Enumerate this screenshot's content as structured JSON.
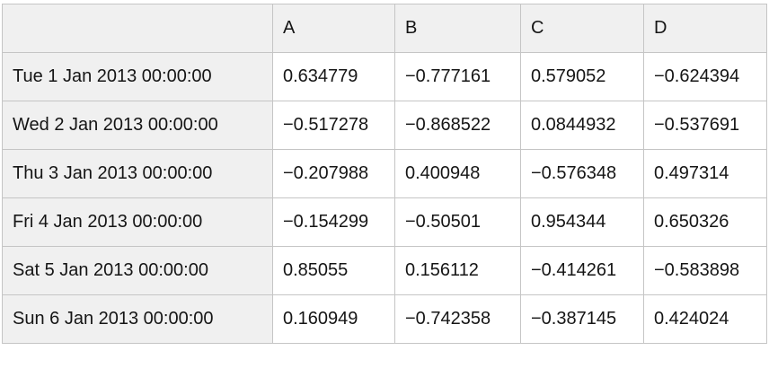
{
  "table": {
    "corner_label": "",
    "columns": [
      "A",
      "B",
      "C",
      "D"
    ],
    "rows": [
      {
        "label": "Tue 1 Jan 2013 00:00:00",
        "values": [
          "0.634779",
          "−0.777161",
          "0.579052",
          "−0.624394"
        ]
      },
      {
        "label": "Wed 2 Jan 2013 00:00:00",
        "values": [
          "−0.517278",
          "−0.868522",
          "0.0844932",
          "−0.537691"
        ]
      },
      {
        "label": "Thu 3 Jan 2013 00:00:00",
        "values": [
          "−0.207988",
          "0.400948",
          "−0.576348",
          "0.497314"
        ]
      },
      {
        "label": "Fri 4 Jan 2013 00:00:00",
        "values": [
          "−0.154299",
          "−0.50501",
          "0.954344",
          "0.650326"
        ]
      },
      {
        "label": "Sat 5 Jan 2013 00:00:00",
        "values": [
          "0.85055",
          "0.156112",
          "−0.414261",
          "−0.583898"
        ]
      },
      {
        "label": "Sun 6 Jan 2013 00:00:00",
        "values": [
          "0.160949",
          "−0.742358",
          "−0.387145",
          "0.424024"
        ]
      }
    ],
    "colors": {
      "header_bg": "#f0f0f0",
      "index_bg": "#f0f0f0",
      "cell_bg": "#ffffff",
      "border": "#c5c5c5",
      "text": "#151515"
    }
  },
  "chart_data": {
    "type": "table",
    "title": "",
    "columns": [
      "A",
      "B",
      "C",
      "D"
    ],
    "index": [
      "Tue 1 Jan 2013 00:00:00",
      "Wed 2 Jan 2013 00:00:00",
      "Thu 3 Jan 2013 00:00:00",
      "Fri 4 Jan 2013 00:00:00",
      "Sat 5 Jan 2013 00:00:00",
      "Sun 6 Jan 2013 00:00:00"
    ],
    "values": [
      [
        0.634779,
        -0.777161,
        0.579052,
        -0.624394
      ],
      [
        -0.517278,
        -0.868522,
        0.0844932,
        -0.537691
      ],
      [
        -0.207988,
        0.400948,
        -0.576348,
        0.497314
      ],
      [
        -0.154299,
        -0.50501,
        0.954344,
        0.650326
      ],
      [
        0.85055,
        0.156112,
        -0.414261,
        -0.583898
      ],
      [
        0.160949,
        -0.742358,
        -0.387145,
        0.424024
      ]
    ]
  }
}
